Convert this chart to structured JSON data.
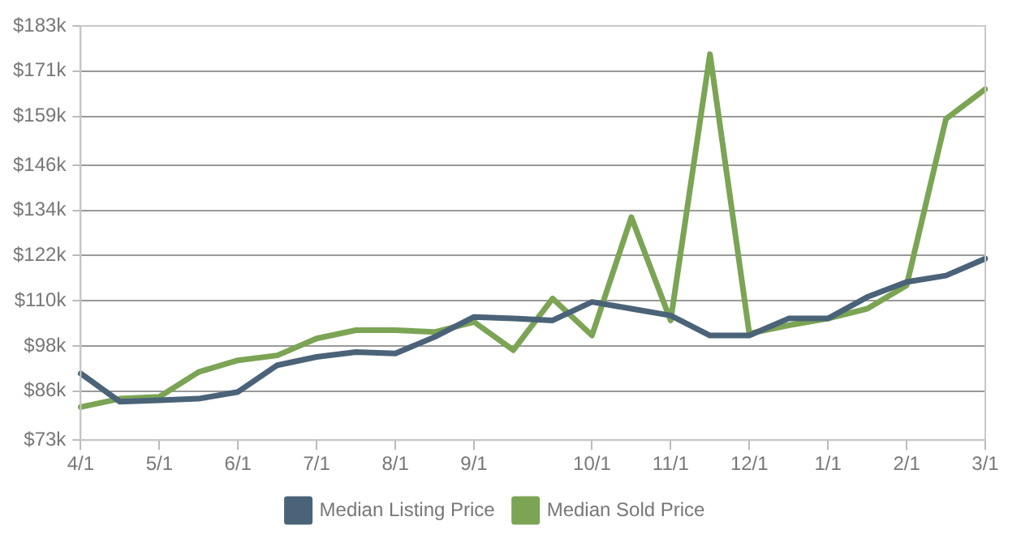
{
  "chart_data": {
    "type": "line",
    "categories": [
      "4/1",
      null,
      "5/1",
      null,
      "6/1",
      null,
      "7/1",
      null,
      "8/1",
      null,
      "9/1",
      null,
      null,
      "10/1",
      null,
      "11/1",
      null,
      "12/1",
      null,
      "1/1",
      null,
      "2/1",
      null,
      "3/1"
    ],
    "series": [
      {
        "name": "Median Listing Price",
        "color": "#4a6378",
        "values": [
          90.7,
          83.2,
          83.6,
          84.0,
          85.8,
          92.9,
          95.1,
          96.4,
          96.0,
          100.4,
          105.7,
          105.3,
          104.8,
          109.7,
          107.9,
          106.1,
          100.8,
          100.8,
          105.3,
          105.3,
          111.0,
          115.0,
          116.7,
          121.2
        ]
      },
      {
        "name": "Median Sold Price",
        "color": "#7ba454",
        "values": [
          81.8,
          84.0,
          84.5,
          91.1,
          94.2,
          95.5,
          100.0,
          102.2,
          102.2,
          101.7,
          104.4,
          96.9,
          110.6,
          100.8,
          132.2,
          104.8,
          175.5,
          101.3,
          103.5,
          105.3,
          107.9,
          114.1,
          158.3,
          166.2
        ]
      }
    ],
    "ylim": [
      73,
      183
    ],
    "yticks": [
      {
        "value": 73,
        "label": "$73k"
      },
      {
        "value": 86,
        "label": "$86k"
      },
      {
        "value": 98,
        "label": "$98k"
      },
      {
        "value": 110,
        "label": "$110k"
      },
      {
        "value": 122,
        "label": "$122k"
      },
      {
        "value": 134,
        "label": "$134k"
      },
      {
        "value": 146,
        "label": "$146k"
      },
      {
        "value": 159,
        "label": "$159k"
      },
      {
        "value": 171,
        "label": "$171k"
      },
      {
        "value": 183,
        "label": "$183k"
      }
    ],
    "grid": "y",
    "legend": "bottom",
    "marker": "none",
    "line_style": "solid"
  }
}
